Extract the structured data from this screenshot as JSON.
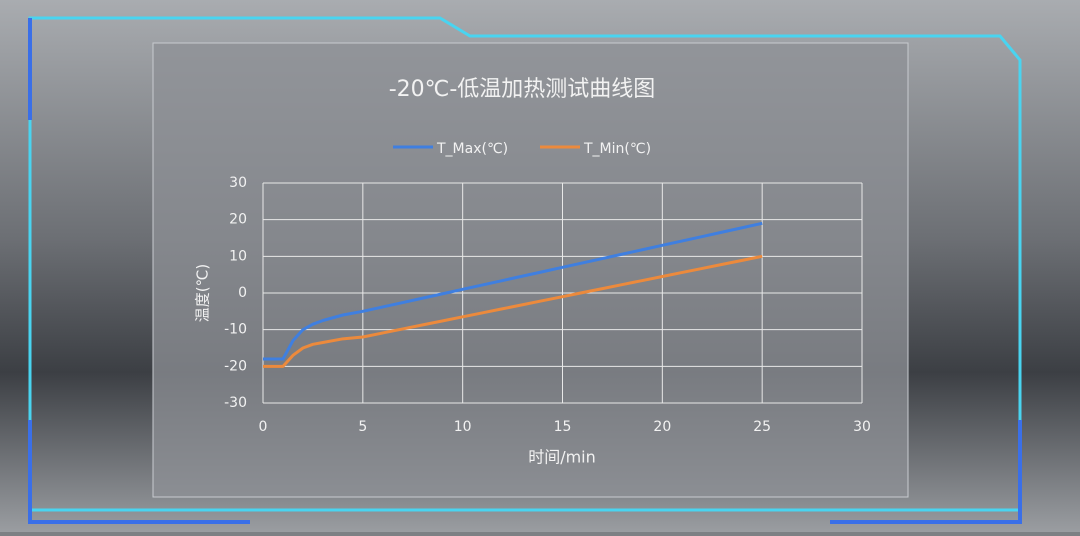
{
  "chart_data": {
    "type": "line",
    "title": "-20℃-低温加热测试曲线图",
    "x_label": "时间/min",
    "y_label": "温度(℃)",
    "x": [
      0,
      1,
      1.5,
      2,
      2.5,
      3,
      4,
      5,
      6,
      7,
      8,
      9,
      10,
      11,
      12,
      13,
      14,
      15,
      16,
      17,
      18,
      19,
      20,
      21,
      22,
      23,
      24,
      25
    ],
    "series": [
      {
        "name": "T_Max(℃)",
        "color": "#3f7fe0",
        "values": [
          -18,
          -18,
          -13,
          -10,
          -8.5,
          -7.5,
          -6,
          -5,
          -3.8,
          -2.6,
          -1.4,
          -0.2,
          1,
          2.2,
          3.4,
          4.6,
          5.8,
          7,
          8.2,
          9.4,
          10.6,
          11.8,
          13,
          14.2,
          15.4,
          16.6,
          17.8,
          19
        ]
      },
      {
        "name": "T_Min(℃)",
        "color": "#ec8a3c",
        "values": [
          -20,
          -20,
          -17,
          -15,
          -14,
          -13.5,
          -12.5,
          -12,
          -10.9,
          -9.8,
          -8.7,
          -7.6,
          -6.5,
          -5.4,
          -4.3,
          -3.2,
          -2.1,
          -1,
          0.1,
          1.2,
          2.3,
          3.4,
          4.5,
          5.6,
          6.7,
          7.8,
          8.9,
          10
        ]
      }
    ],
    "xlim": [
      0,
      30
    ],
    "xticks": [
      0,
      5,
      10,
      15,
      20,
      25,
      30
    ],
    "ylim": [
      -30,
      30
    ],
    "yticks": [
      -30,
      -20,
      -10,
      0,
      10,
      20,
      30
    ],
    "grid": true,
    "legend": "top"
  }
}
